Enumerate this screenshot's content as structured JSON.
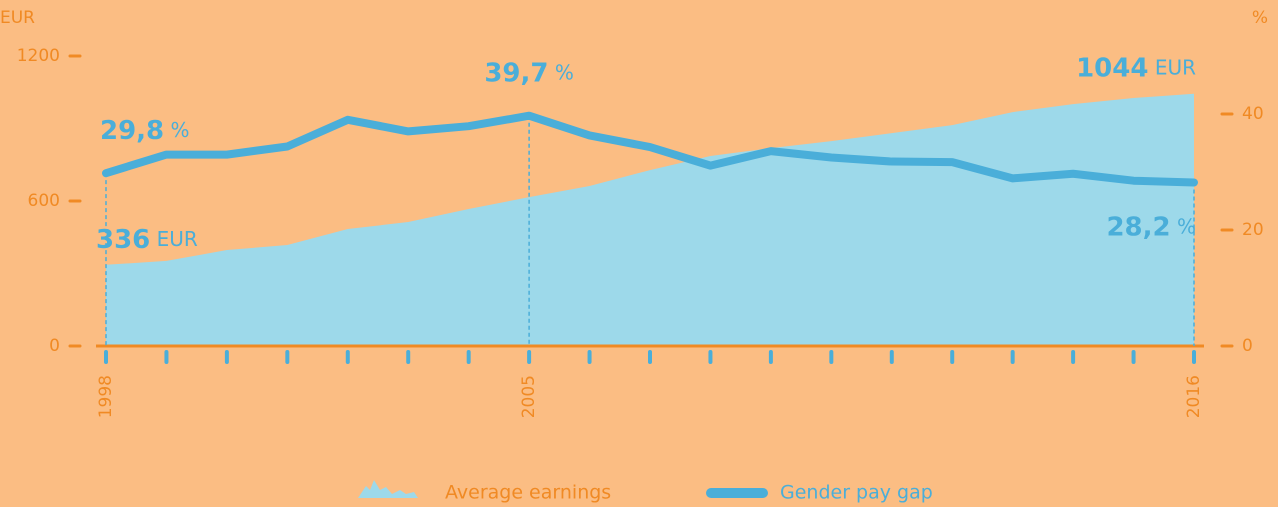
{
  "chart_data": {
    "type": "area-line",
    "ylabel": "EUR",
    "y2label": "%",
    "categories": [
      "1998",
      null,
      null,
      null,
      null,
      null,
      null,
      "2005",
      null,
      null,
      null,
      null,
      null,
      null,
      null,
      null,
      null,
      null,
      "2016"
    ],
    "ylim": [
      0,
      1200
    ],
    "yticks": [
      0,
      600,
      1200
    ],
    "y2lim": [
      0,
      50
    ],
    "y2ticks": [
      0,
      20,
      40
    ],
    "series": [
      {
        "name": "Average earnings",
        "color": "#9dd9ea",
        "axis": "y",
        "values": [
          336,
          352,
          397,
          418,
          484,
          513,
          567,
          616,
          662,
          728,
          786,
          819,
          848,
          881,
          914,
          968,
          1001,
          1026,
          1044
        ],
        "value_labels": [
          "336 EUR",
          null,
          null,
          null,
          null,
          null,
          null,
          null,
          null,
          null,
          null,
          null,
          null,
          null,
          null,
          null,
          null,
          null,
          "1044 EUR"
        ]
      },
      {
        "name": "Gender pay gap",
        "color": "#4aaed9",
        "axis": "y2",
        "values": [
          29.8,
          33.0,
          33.0,
          34.4,
          39.0,
          37.0,
          37.9,
          39.7,
          36.3,
          34.3,
          31.1,
          33.6,
          32.5,
          31.8,
          31.7,
          28.9,
          29.7,
          28.5,
          28.2
        ],
        "value_labels": [
          "29,8 %",
          null,
          null,
          null,
          null,
          null,
          null,
          "39,7 %",
          null,
          null,
          null,
          null,
          null,
          null,
          null,
          null,
          null,
          null,
          "28,2 %"
        ]
      }
    ]
  }
}
